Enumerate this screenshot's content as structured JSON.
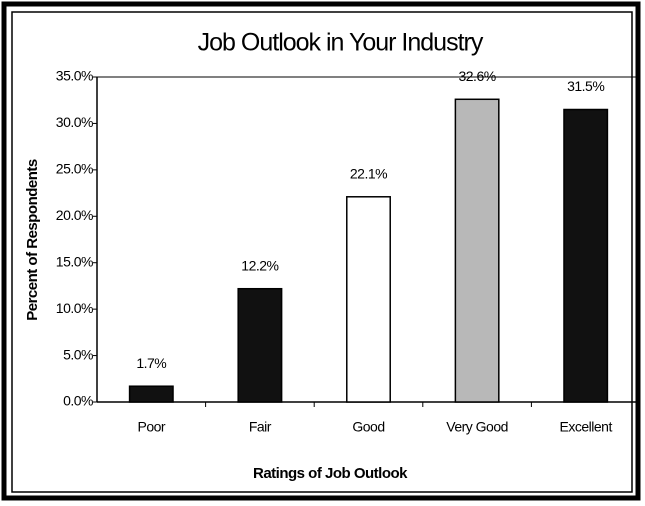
{
  "chart_data": {
    "type": "bar",
    "title": "Job Outlook in Your Industry",
    "x_label": "Ratings of Job Outlook",
    "y_label": "Percent of Respondents",
    "categories": [
      "Poor",
      "Fair",
      "Good",
      "Very Good",
      "Excellent"
    ],
    "values": [
      1.7,
      12.2,
      22.1,
      32.6,
      31.5
    ],
    "value_labels": [
      "1.7%",
      "12.2%",
      "22.1%",
      "32.6%",
      "31.5%"
    ],
    "colors": [
      "#111111",
      "#111111",
      "#ffffff",
      "#b8b8b8",
      "#111111"
    ],
    "ylim": [
      0,
      35
    ],
    "yticks": [
      {
        "value": 0,
        "label": "0.0%"
      },
      {
        "value": 5,
        "label": "5.0%"
      },
      {
        "value": 10,
        "label": "10.0%"
      },
      {
        "value": 15,
        "label": "15.0%"
      },
      {
        "value": 20,
        "label": "20.0%"
      },
      {
        "value": 25,
        "label": "25.0%"
      },
      {
        "value": 30,
        "label": "30.0%"
      },
      {
        "value": 35,
        "label": "35.0%"
      }
    ],
    "grid": false
  }
}
